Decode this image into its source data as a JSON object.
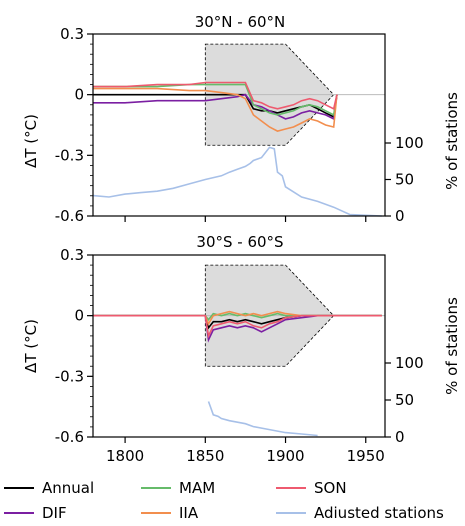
{
  "chart_data": [
    {
      "type": "line",
      "title": "30°N - 60°N",
      "ylabel": "ΔT (°C)",
      "ylabel_right": "% of stations",
      "xlim": [
        1780,
        1962
      ],
      "ylim": [
        -0.6,
        0.3
      ],
      "yticks": [
        0.3,
        0,
        -0.3,
        -0.6
      ],
      "ytick_labels": [
        "0.3",
        "0",
        "-0.3",
        "-0.6"
      ],
      "yticks_right": [
        0,
        50,
        100
      ],
      "ytick_right_labels": [
        "0",
        "50",
        "100"
      ],
      "uncertainty_box": {
        "x_start": 1850,
        "x_taper_start": 1900,
        "x_end": 1930,
        "upper": 0.25,
        "lower": -0.25
      },
      "series": [
        {
          "name": "Annual",
          "color": "#000000",
          "x": [
            1780,
            1800,
            1820,
            1840,
            1850,
            1860,
            1870,
            1875,
            1880,
            1885,
            1890,
            1895,
            1900,
            1905,
            1910,
            1915,
            1920,
            1925,
            1930,
            1932
          ],
          "y": [
            0.0,
            0.0,
            0.0,
            0.0,
            0.0,
            0.0,
            0.0,
            0.0,
            -0.07,
            -0.08,
            -0.08,
            -0.09,
            -0.08,
            -0.07,
            -0.06,
            -0.05,
            -0.07,
            -0.09,
            -0.11,
            0.0
          ]
        },
        {
          "name": "DJF",
          "color": "#7b1fa2",
          "x": [
            1780,
            1800,
            1820,
            1840,
            1850,
            1860,
            1870,
            1875,
            1880,
            1885,
            1890,
            1895,
            1900,
            1905,
            1910,
            1915,
            1920,
            1925,
            1930,
            1932
          ],
          "y": [
            -0.04,
            -0.04,
            -0.03,
            -0.03,
            -0.03,
            -0.02,
            -0.01,
            0.0,
            -0.05,
            -0.06,
            -0.08,
            -0.1,
            -0.12,
            -0.11,
            -0.09,
            -0.08,
            -0.09,
            -0.1,
            -0.12,
            0.0
          ]
        },
        {
          "name": "MAM",
          "color": "#66bb6a",
          "x": [
            1780,
            1800,
            1820,
            1840,
            1850,
            1860,
            1870,
            1875,
            1880,
            1885,
            1890,
            1895,
            1900,
            1905,
            1910,
            1915,
            1920,
            1925,
            1930,
            1932
          ],
          "y": [
            0.04,
            0.04,
            0.04,
            0.05,
            0.05,
            0.05,
            0.05,
            0.05,
            -0.05,
            -0.07,
            -0.09,
            -0.1,
            -0.09,
            -0.08,
            -0.06,
            -0.05,
            -0.06,
            -0.08,
            -0.1,
            0.0
          ]
        },
        {
          "name": "JJA",
          "color": "#f28e4e",
          "x": [
            1780,
            1800,
            1820,
            1840,
            1850,
            1860,
            1870,
            1875,
            1880,
            1885,
            1890,
            1895,
            1900,
            1905,
            1910,
            1915,
            1920,
            1925,
            1930,
            1932
          ],
          "y": [
            0.03,
            0.03,
            0.03,
            0.02,
            0.02,
            0.01,
            0.0,
            -0.02,
            -0.1,
            -0.13,
            -0.16,
            -0.18,
            -0.17,
            -0.16,
            -0.14,
            -0.12,
            -0.13,
            -0.15,
            -0.16,
            0.0
          ]
        },
        {
          "name": "SON",
          "color": "#ee5a6f",
          "x": [
            1780,
            1800,
            1820,
            1840,
            1850,
            1860,
            1870,
            1875,
            1880,
            1885,
            1890,
            1895,
            1900,
            1905,
            1910,
            1915,
            1920,
            1925,
            1930,
            1932
          ],
          "y": [
            0.04,
            0.04,
            0.05,
            0.05,
            0.06,
            0.06,
            0.06,
            0.06,
            -0.03,
            -0.04,
            -0.06,
            -0.07,
            -0.06,
            -0.05,
            -0.03,
            -0.02,
            -0.03,
            -0.05,
            -0.07,
            0.0
          ]
        }
      ],
      "stations_pct": {
        "name": "Adjusted stations",
        "color": "#a7c0e8",
        "x": [
          1780,
          1790,
          1800,
          1810,
          1820,
          1830,
          1840,
          1850,
          1860,
          1865,
          1870,
          1875,
          1878,
          1880,
          1885,
          1890,
          1893,
          1895,
          1898,
          1900,
          1910,
          1920,
          1930,
          1940,
          1960
        ],
        "y": [
          28,
          26,
          30,
          32,
          34,
          38,
          44,
          50,
          55,
          60,
          64,
          68,
          72,
          76,
          80,
          94,
          92,
          60,
          55,
          40,
          26,
          20,
          12,
          2,
          0
        ]
      }
    },
    {
      "type": "line",
      "title": "30°S - 60°S",
      "ylabel": "ΔT (°C)",
      "ylabel_right": "% of stations",
      "xlim": [
        1780,
        1962
      ],
      "ylim": [
        -0.6,
        0.3
      ],
      "xticks": [
        1800,
        1850,
        1900,
        1950
      ],
      "xtick_labels": [
        "1800",
        "1850",
        "1900",
        "1950"
      ],
      "yticks": [
        0.3,
        0,
        -0.3,
        -0.6
      ],
      "ytick_labels": [
        "0.3",
        "0",
        "-0.3",
        "-0.6"
      ],
      "yticks_right": [
        0,
        50,
        100
      ],
      "ytick_right_labels": [
        "0",
        "50",
        "100"
      ],
      "uncertainty_box": {
        "x_start": 1850,
        "x_taper_start": 1900,
        "x_end": 1930,
        "upper": 0.25,
        "lower": -0.25
      },
      "series": [
        {
          "name": "Annual",
          "color": "#000000",
          "x": [
            1780,
            1850,
            1852,
            1855,
            1860,
            1865,
            1870,
            1875,
            1880,
            1885,
            1890,
            1895,
            1900,
            1910,
            1920,
            1930,
            1960
          ],
          "y": [
            0,
            0,
            -0.06,
            -0.03,
            -0.03,
            -0.02,
            -0.03,
            -0.02,
            -0.03,
            -0.04,
            -0.03,
            -0.02,
            -0.01,
            0,
            0,
            0,
            0
          ]
        },
        {
          "name": "DJF",
          "color": "#7b1fa2",
          "x": [
            1780,
            1850,
            1852,
            1855,
            1860,
            1865,
            1870,
            1875,
            1880,
            1885,
            1890,
            1895,
            1900,
            1910,
            1920,
            1930,
            1960
          ],
          "y": [
            0,
            0,
            -0.12,
            -0.07,
            -0.06,
            -0.05,
            -0.06,
            -0.05,
            -0.06,
            -0.08,
            -0.06,
            -0.04,
            -0.02,
            -0.01,
            0,
            0,
            0
          ]
        },
        {
          "name": "MAM",
          "color": "#66bb6a",
          "x": [
            1780,
            1850,
            1852,
            1855,
            1860,
            1865,
            1870,
            1875,
            1880,
            1885,
            1890,
            1895,
            1900,
            1910,
            1920,
            1930,
            1960
          ],
          "y": [
            0,
            0,
            -0.02,
            0.01,
            0.0,
            0.01,
            0.0,
            0.01,
            0.0,
            -0.01,
            0.0,
            0.01,
            0.0,
            0,
            0,
            0,
            0
          ]
        },
        {
          "name": "JJA",
          "color": "#f28e4e",
          "x": [
            1780,
            1850,
            1852,
            1855,
            1860,
            1865,
            1870,
            1875,
            1880,
            1885,
            1890,
            1895,
            1900,
            1910,
            1920,
            1930,
            1960
          ],
          "y": [
            0,
            0,
            -0.04,
            0.0,
            0.01,
            0.02,
            0.01,
            0.0,
            0.01,
            0.0,
            0.01,
            0.02,
            0.01,
            0,
            0,
            0,
            0
          ]
        },
        {
          "name": "SON",
          "color": "#ee5a6f",
          "x": [
            1780,
            1850,
            1852,
            1855,
            1860,
            1865,
            1870,
            1875,
            1880,
            1885,
            1890,
            1895,
            1900,
            1910,
            1920,
            1930,
            1960
          ],
          "y": [
            0,
            0,
            -0.1,
            -0.05,
            -0.04,
            -0.03,
            -0.04,
            -0.03,
            -0.05,
            -0.06,
            -0.04,
            -0.03,
            -0.01,
            0,
            0,
            0,
            0
          ]
        }
      ],
      "stations_pct": {
        "name": "Adjusted stations",
        "color": "#a7c0e8",
        "x": [
          1852,
          1853,
          1855,
          1858,
          1860,
          1865,
          1870,
          1875,
          1880,
          1890,
          1900,
          1910,
          1920
        ],
        "y": [
          48,
          42,
          30,
          28,
          25,
          22,
          20,
          18,
          14,
          10,
          6,
          4,
          2
        ]
      }
    }
  ],
  "legend": [
    {
      "label": "Annual",
      "color": "#000000"
    },
    {
      "label": "MAM",
      "color": "#66bb6a"
    },
    {
      "label": "SON",
      "color": "#ee5a6f"
    },
    {
      "label": "DIF",
      "color": "#7b1fa2"
    },
    {
      "label": "IIA",
      "color": "#f28e4e"
    },
    {
      "label": "Adiusted stations",
      "color": "#a7c0e8"
    }
  ]
}
